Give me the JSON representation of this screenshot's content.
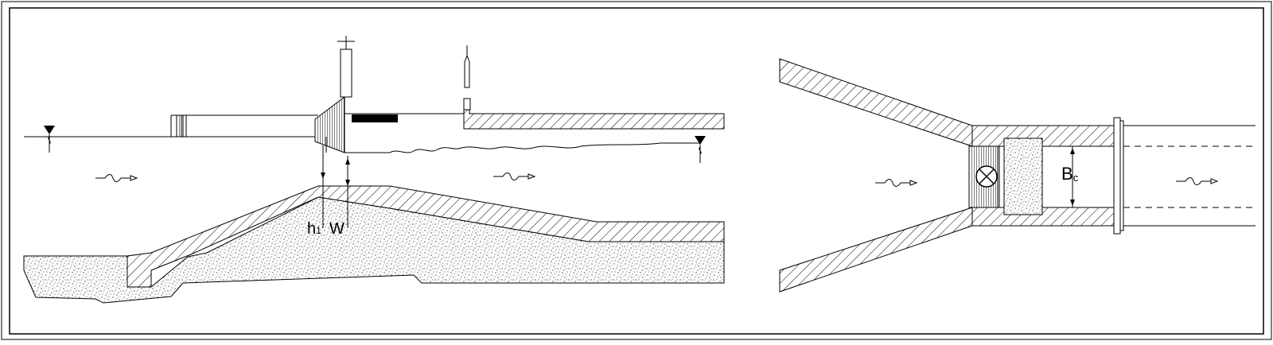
{
  "diagram": {
    "labels": {
      "h_main": "h",
      "h_sub": "1",
      "w": "W",
      "b_main": "B",
      "b_sub": "c"
    },
    "icons": [
      "water-level-marker-icon",
      "flow-arrow-icon",
      "gate-valve-icon"
    ],
    "colors": {
      "line": "#000000",
      "background": "#ffffff"
    }
  }
}
